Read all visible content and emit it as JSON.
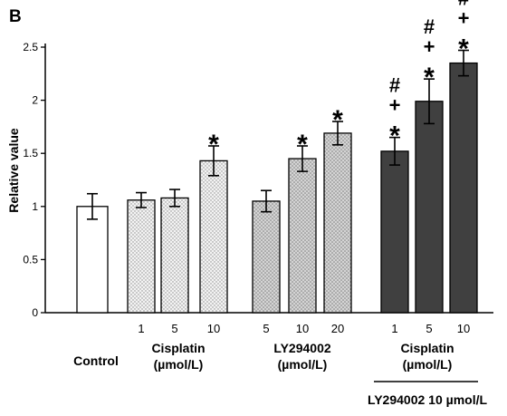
{
  "chart_data": {
    "type": "bar",
    "panel_label": "B",
    "ylabel": "Relative value",
    "ylim": [
      0,
      2.5
    ],
    "yticks": [
      "0",
      "0.5",
      "1",
      "1.5",
      "2",
      "2.5"
    ],
    "bars": [
      {
        "group": 0,
        "tick": "",
        "value": 1.0,
        "error": 0.12,
        "marks": []
      },
      {
        "group": 1,
        "tick": "1",
        "value": 1.06,
        "error": 0.07,
        "marks": []
      },
      {
        "group": 1,
        "tick": "5",
        "value": 1.08,
        "error": 0.08,
        "marks": []
      },
      {
        "group": 1,
        "tick": "10",
        "value": 1.43,
        "error": 0.14,
        "marks": [
          "*"
        ]
      },
      {
        "group": 2,
        "tick": "5",
        "value": 1.05,
        "error": 0.1,
        "marks": []
      },
      {
        "group": 2,
        "tick": "10",
        "value": 1.45,
        "error": 0.12,
        "marks": [
          "*"
        ]
      },
      {
        "group": 2,
        "tick": "20",
        "value": 1.69,
        "error": 0.11,
        "marks": [
          "*"
        ]
      },
      {
        "group": 3,
        "tick": "1",
        "value": 1.52,
        "error": 0.13,
        "marks": [
          "#",
          "+",
          "*"
        ]
      },
      {
        "group": 3,
        "tick": "5",
        "value": 1.99,
        "error": 0.21,
        "marks": [
          "#",
          "+",
          "*"
        ]
      },
      {
        "group": 3,
        "tick": "10",
        "value": 2.35,
        "error": 0.12,
        "marks": [
          "#",
          "+",
          "*"
        ]
      }
    ],
    "groups": [
      {
        "line1": "Control",
        "line2": "",
        "fill": "#ffffff"
      },
      {
        "line1": "Cisplatin",
        "line2": "(µmol/L)",
        "fill": "dots-light"
      },
      {
        "line1": "LY294002",
        "line2": "(µmol/L)",
        "fill": "dots-mid"
      },
      {
        "line1": "Cisplatin",
        "line2": "(µmol/L)",
        "fill": "#404040"
      }
    ],
    "bracket_label": "LY294002 10 µmol/L"
  }
}
